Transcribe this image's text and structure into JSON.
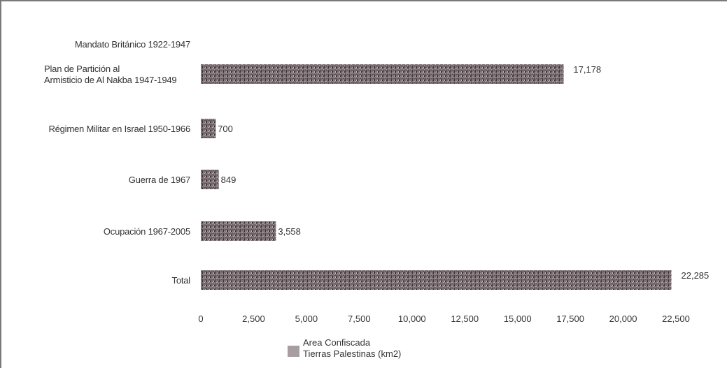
{
  "chart_data": {
    "type": "bar",
    "orientation": "horizontal",
    "categories": [
      [
        "Mandato Británico 1922-1947"
      ],
      [
        "Plan de Partición al",
        "Armisticio de Al Nakba 1947-1949"
      ],
      [
        "Régimen Militar en Israel 1950-1966"
      ],
      [
        "Guerra de 1967"
      ],
      [
        "Ocupación 1967-2005"
      ],
      [
        "Total"
      ]
    ],
    "values": [
      null,
      17178,
      700,
      849,
      3558,
      22285
    ],
    "value_labels": [
      "",
      "17,178",
      "700",
      "849",
      "3,558",
      "22,285"
    ],
    "xlim": [
      0,
      22500
    ],
    "xticks": [
      0,
      2500,
      5000,
      7500,
      10000,
      12500,
      15000,
      17500,
      20000,
      22500
    ],
    "xtick_labels": [
      "0",
      "2,500",
      "5,000",
      "7,500",
      "10,000",
      "12,500",
      "15,000",
      "17,500",
      "20,000",
      "22,500"
    ],
    "grid": false,
    "legend_position": "bottom",
    "series": [
      {
        "name_lines": [
          "Area Confiscada",
          "Tierras Palestinas (km2)"
        ],
        "color": "#6e6266"
      }
    ],
    "colors": {
      "bar": "#6e6266",
      "bar_dark": "#3f3538",
      "bar_light": "#a79ea1",
      "text": "#333333",
      "frame": "#7a7a7a"
    }
  }
}
